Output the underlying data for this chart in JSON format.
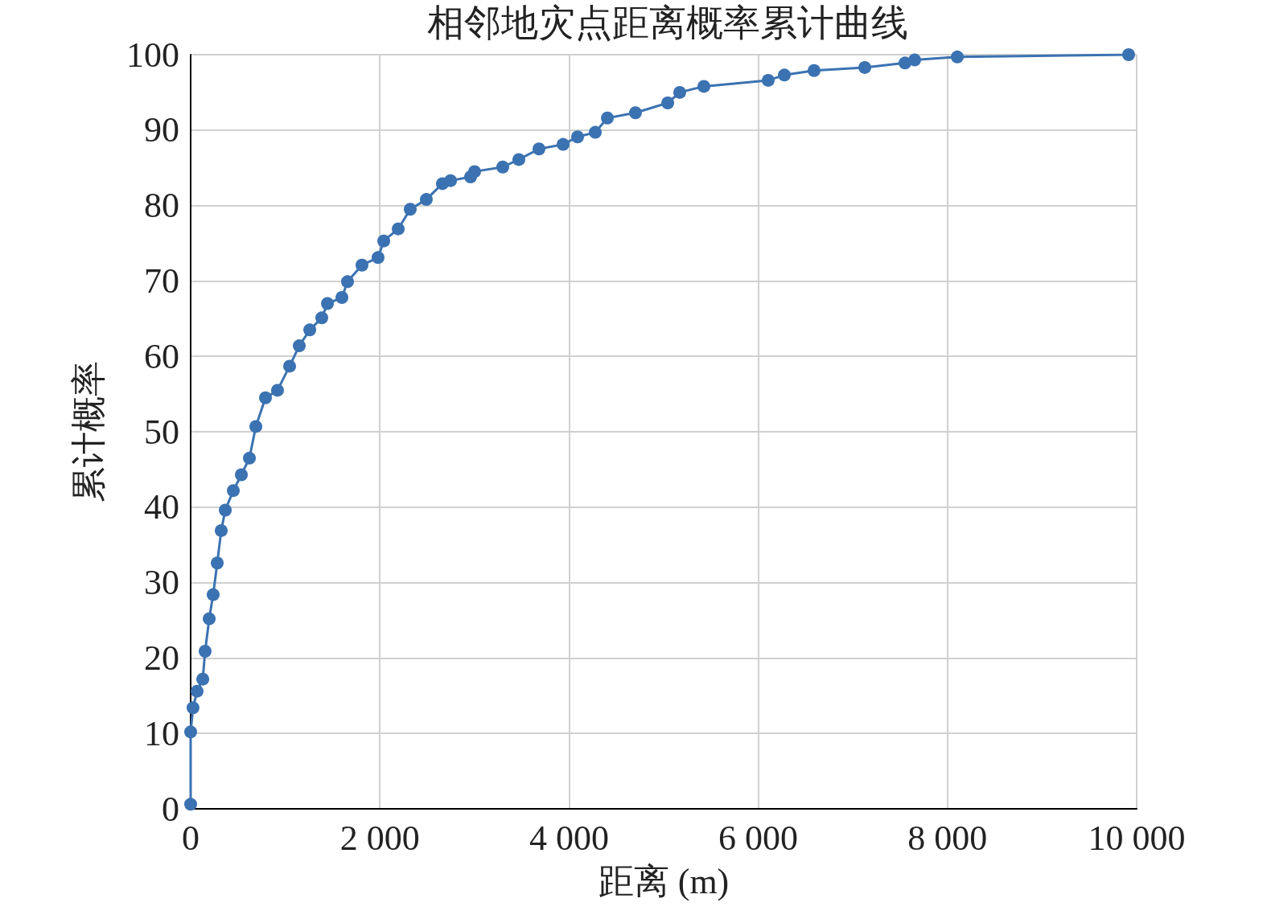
{
  "chart_data": {
    "type": "line",
    "title": "相邻地灾点距离概率累计曲线",
    "xlabel": "距离 (m)",
    "ylabel": "累计概率",
    "x": [
      0,
      0,
      25,
      68,
      128,
      153,
      196,
      238,
      281,
      323,
      366,
      451,
      536,
      621,
      689,
      791,
      918,
      1046,
      1148,
      1259,
      1386,
      1446,
      1599,
      1658,
      1811,
      1981,
      2041,
      2194,
      2321,
      2491,
      2661,
      2747,
      2959,
      3001,
      3299,
      3469,
      3682,
      3937,
      4090,
      4277,
      4405,
      4702,
      5043,
      5170,
      5425,
      6105,
      6276,
      6590,
      7126,
      7551,
      7653,
      8104,
      9915
    ],
    "series": [
      {
        "color": "#3b72b1",
        "values": [
          0.6,
          10.2,
          13.4,
          15.6,
          17.2,
          20.9,
          25.2,
          28.4,
          32.6,
          36.9,
          39.6,
          42.2,
          44.3,
          46.5,
          50.7,
          54.5,
          55.5,
          58.7,
          61.4,
          63.5,
          65.1,
          67,
          67.8,
          69.9,
          72.1,
          73.1,
          75.3,
          76.9,
          79.5,
          80.8,
          82.9,
          83.3,
          83.8,
          84.5,
          85.1,
          86.1,
          87.5,
          88.1,
          89.1,
          89.7,
          91.6,
          92.3,
          93.6,
          95,
          95.8,
          96.6,
          97.3,
          97.9,
          98.3,
          98.9,
          99.3,
          99.7,
          100
        ]
      }
    ],
    "xlim": [
      0,
      10000
    ],
    "xticks": [
      0,
      {
        "value": 2000,
        "label": "2 000"
      },
      {
        "value": 4000,
        "label": "4 000"
      },
      {
        "value": 6000,
        "label": "6 000"
      },
      {
        "value": 8000,
        "label": "8 000"
      },
      {
        "value": 10000,
        "label": "10 000"
      }
    ],
    "ylim": [
      0,
      100
    ],
    "yticks": [
      0,
      10,
      20,
      30,
      40,
      50,
      60,
      70,
      80,
      90,
      100
    ],
    "grid": true,
    "marker": "circle",
    "line_style": "solid"
  }
}
